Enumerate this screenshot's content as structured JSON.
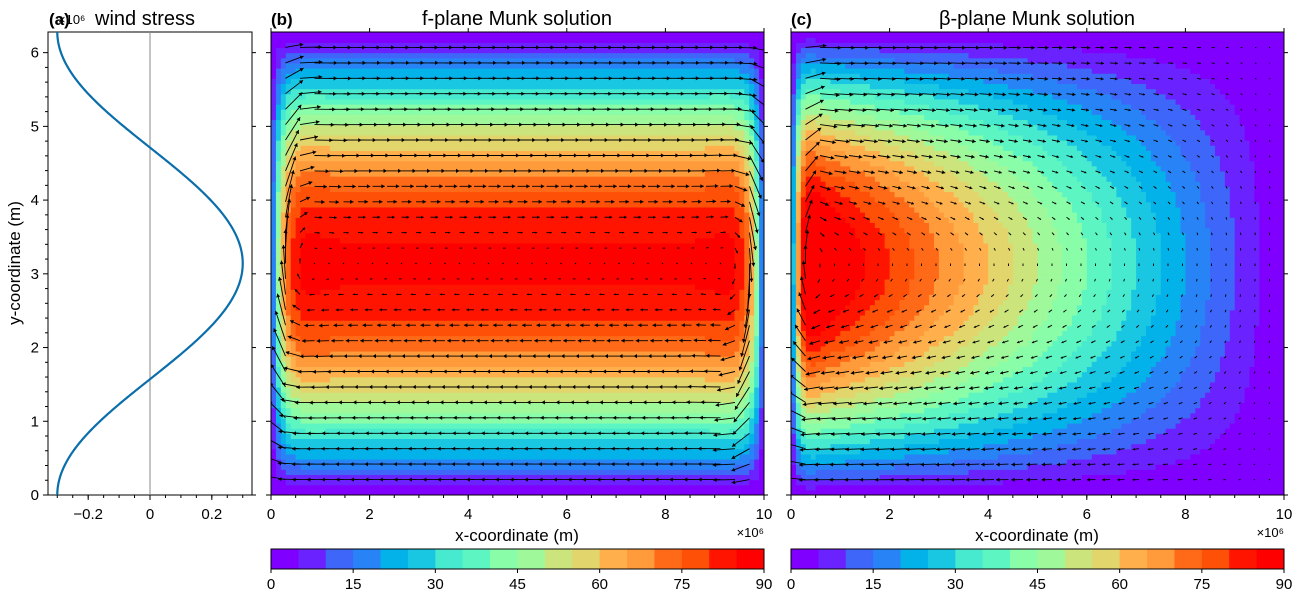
{
  "chart_data": [
    {
      "panel": "(a)",
      "type": "line",
      "title": "wind stress",
      "ylabel": "y-coordinate (m)",
      "y_multiplier_label": "×10⁶",
      "xlim": [
        -0.33,
        0.33
      ],
      "ylim": [
        0,
        6.28
      ],
      "x_ticks": [
        "−0.2",
        "0",
        "0.2"
      ],
      "x_tick_values": [
        -0.2,
        0,
        0.2
      ],
      "y_ticks": [
        "0",
        "1",
        "2",
        "3",
        "4",
        "5",
        "6"
      ],
      "series": [
        {
          "color": "#0a6eab",
          "formula": "x = -0.3·cos(y / 10⁶)",
          "amplitude": 0.3,
          "y_period_scale": 1000000.0
        }
      ],
      "zero_line": true
    },
    {
      "panel": "(b)",
      "type": "heatmap",
      "title": "f-plane Munk solution",
      "xlabel": "x-coordinate (m)",
      "x_multiplier_label": "×10⁶",
      "xlim": [
        0,
        10
      ],
      "ylim": [
        0,
        6.28
      ],
      "x_ticks": [
        "0",
        "2",
        "4",
        "6",
        "8",
        "10"
      ],
      "field": "streamfunction, symmetric boundary layers on western and eastern walls",
      "vectors": "velocity arrows (quiver), black",
      "colorbar": {
        "min": 0,
        "max": 90,
        "levels": 18,
        "ticks": [
          "0",
          "15",
          "30",
          "45",
          "60",
          "75",
          "90"
        ]
      }
    },
    {
      "panel": "(c)",
      "type": "heatmap",
      "title": "β-plane Munk solution",
      "xlabel": "x-coordinate (m)",
      "x_multiplier_label": "×10⁶",
      "xlim": [
        0,
        10
      ],
      "ylim": [
        0,
        6.28
      ],
      "x_ticks": [
        "0",
        "2",
        "4",
        "6",
        "8",
        "10"
      ],
      "field": "streamfunction, western-intensified boundary current",
      "vectors": "velocity arrows (quiver), black",
      "colorbar": {
        "min": 0,
        "max": 90,
        "levels": 18,
        "ticks": [
          "0",
          "15",
          "30",
          "45",
          "60",
          "75",
          "90"
        ]
      }
    }
  ],
  "colormap": [
    "#8000ff",
    "#6a23fe",
    "#5446fd",
    "#3e67fa",
    "#2884f6",
    "#129df0",
    "#04b2ea",
    "#1ac7e2",
    "#30dbda",
    "#47eace",
    "#5df6c2",
    "#73fdb5",
    "#89fda8",
    "#9ff89a",
    "#b5ef8b",
    "#cce47c",
    "#e2d56c",
    "#f8c45c",
    "#ffb04c",
    "#ff9b3b",
    "#ff842a",
    "#ff6a19",
    "#ff5008",
    "#ff3200",
    "#ff1400",
    "#ff0000"
  ]
}
